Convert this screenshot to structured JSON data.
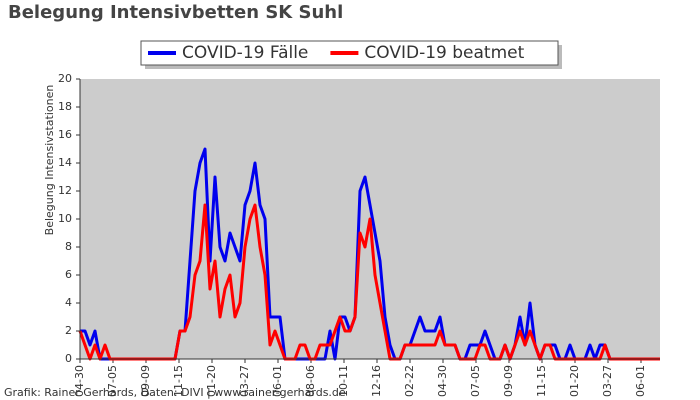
{
  "chart_data": {
    "type": "line",
    "title": "Belegung Intensivbetten SK Suhl",
    "y_label": "Belegung Intensivstationen",
    "source": "Grafik: Rainer Gerhards, Daten: DIVI | www.rainer-gerhards.de",
    "legend": "top",
    "background": "#cccccc",
    "x": [
      0,
      10,
      20,
      30,
      40,
      50,
      60,
      70,
      80,
      90,
      100,
      110,
      120,
      130,
      140,
      150,
      160,
      170,
      180,
      190,
      200,
      210,
      220,
      230,
      240,
      250,
      260,
      270,
      280,
      290,
      300,
      310,
      320,
      330,
      340,
      350,
      360,
      370,
      380,
      390,
      400,
      410,
      420,
      430,
      440,
      450,
      460,
      470,
      480,
      490,
      500,
      510,
      520,
      530,
      540,
      550,
      560,
      570,
      580,
      590,
      600,
      610,
      620,
      630,
      640,
      650,
      660,
      670,
      680,
      690,
      700,
      710,
      720,
      730,
      740,
      750,
      760,
      770,
      780,
      790,
      800,
      810,
      820,
      830,
      840,
      850,
      860,
      870,
      880,
      890,
      900,
      910,
      920,
      930,
      940,
      950,
      960,
      970,
      980,
      990,
      1000,
      1010,
      1020,
      1030,
      1040,
      1050,
      1060,
      1070,
      1080,
      1090,
      1100,
      1110,
      1120,
      1130,
      1140,
      1150,
      1160
    ],
    "xlim": [
      0,
      1160
    ],
    "xticks": [
      {
        "value": 0,
        "label": "04-30"
      },
      {
        "value": 66,
        "label": "07-05"
      },
      {
        "value": 132,
        "label": "09-09"
      },
      {
        "value": 198,
        "label": "11-15"
      },
      {
        "value": 264,
        "label": "01-20"
      },
      {
        "value": 330,
        "label": "03-27"
      },
      {
        "value": 396,
        "label": "06-01"
      },
      {
        "value": 462,
        "label": "08-06"
      },
      {
        "value": 528,
        "label": "10-11"
      },
      {
        "value": 594,
        "label": "12-16"
      },
      {
        "value": 660,
        "label": "02-22"
      },
      {
        "value": 726,
        "label": "04-30"
      },
      {
        "value": 792,
        "label": "07-05"
      },
      {
        "value": 858,
        "label": "09-09"
      },
      {
        "value": 924,
        "label": "11-15"
      },
      {
        "value": 990,
        "label": "01-20"
      },
      {
        "value": 1056,
        "label": "03-27"
      },
      {
        "value": 1122,
        "label": "06-01"
      }
    ],
    "ylim": [
      0,
      20
    ],
    "yticks": [
      0,
      2,
      4,
      6,
      8,
      10,
      12,
      14,
      16,
      18,
      20
    ],
    "series": [
      {
        "name": "COVID-19 Fälle",
        "color": "#0000ee",
        "values": [
          2,
          2,
          1,
          2,
          0,
          0,
          0,
          0,
          0,
          0,
          0,
          0,
          0,
          0,
          0,
          0,
          0,
          0,
          0,
          0,
          2,
          2,
          7,
          12,
          14,
          15,
          7,
          13,
          8,
          7,
          9,
          8,
          7,
          11,
          12,
          14,
          11,
          10,
          3,
          3,
          3,
          0,
          0,
          0,
          0,
          0,
          0,
          0,
          0,
          0,
          2,
          0,
          3,
          3,
          2,
          3,
          12,
          13,
          11,
          9,
          7,
          3,
          1,
          0,
          0,
          1,
          1,
          2,
          3,
          2,
          2,
          2,
          3,
          1,
          1,
          1,
          0,
          0,
          1,
          1,
          1,
          2,
          1,
          0,
          0,
          1,
          0,
          1,
          3,
          1,
          4,
          1,
          0,
          1,
          1,
          1,
          0,
          0,
          1,
          0,
          0,
          0,
          1,
          0,
          1,
          1,
          0,
          0,
          0,
          0,
          0,
          0,
          0,
          0,
          0,
          0,
          0
        ]
      },
      {
        "name": "COVID-19 beatmet",
        "color": "#ff0000",
        "values": [
          2,
          1,
          0,
          1,
          0,
          1,
          0,
          0,
          0,
          0,
          0,
          0,
          0,
          0,
          0,
          0,
          0,
          0,
          0,
          0,
          2,
          2,
          3,
          6,
          7,
          11,
          5,
          7,
          3,
          5,
          6,
          3,
          4,
          8,
          10,
          11,
          8,
          6,
          1,
          2,
          1,
          0,
          0,
          0,
          1,
          1,
          0,
          0,
          1,
          1,
          1,
          2,
          3,
          2,
          2,
          3,
          9,
          8,
          10,
          6,
          4,
          2,
          0,
          0,
          0,
          1,
          1,
          1,
          1,
          1,
          1,
          1,
          2,
          1,
          1,
          1,
          0,
          0,
          0,
          0,
          1,
          1,
          0,
          0,
          0,
          1,
          0,
          1,
          2,
          1,
          2,
          1,
          0,
          1,
          1,
          0,
          0,
          0,
          0,
          0,
          0,
          0,
          0,
          0,
          0,
          1,
          0,
          0,
          0,
          0,
          0,
          0,
          0,
          0,
          0,
          0,
          0
        ]
      }
    ]
  }
}
